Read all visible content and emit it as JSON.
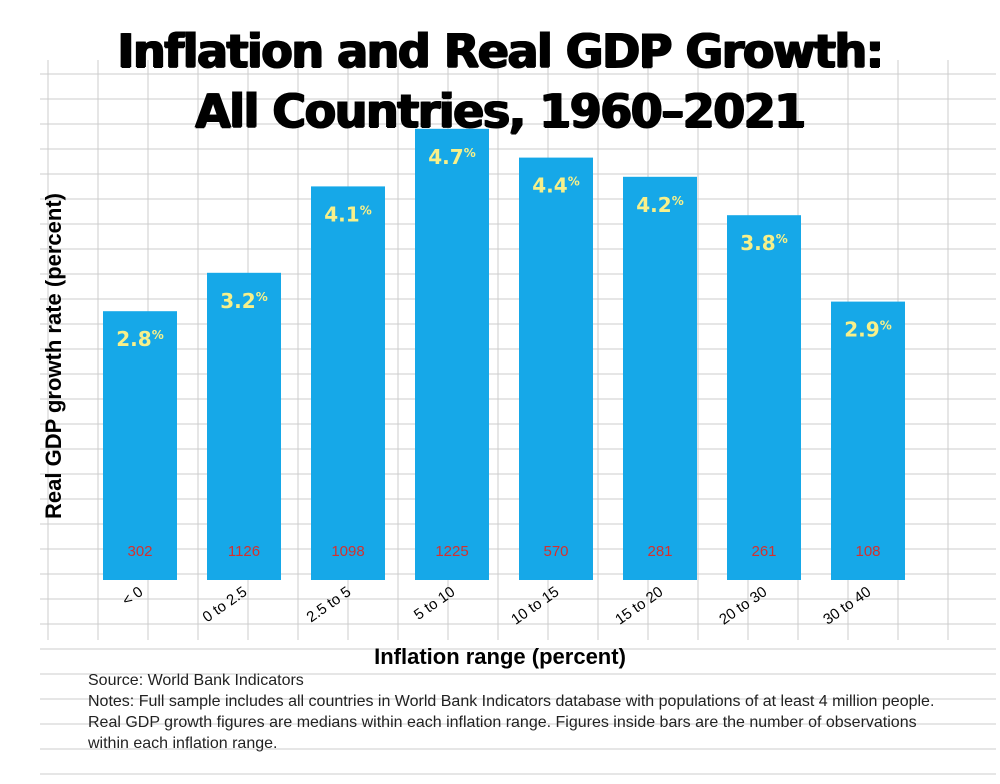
{
  "title_line1": "Inflation and Real GDP Growth:",
  "title_line2": "All Countries, 1960–2021",
  "chart_data": {
    "type": "bar",
    "title": "Inflation and Real GDP Growth: All Countries, 1960–2021",
    "xlabel": "Inflation range (percent)",
    "ylabel": "Real GDP growth rate (percent)",
    "categories": [
      "< 0",
      "0 to 2.5",
      "2.5 to 5",
      "5 to 10",
      "10 to 15",
      "15 to 20",
      "20 to 30",
      "30 to 40"
    ],
    "values": [
      2.8,
      3.2,
      4.1,
      4.7,
      4.4,
      4.2,
      3.8,
      2.9
    ],
    "value_labels": [
      "2.8",
      "3.2",
      "4.1",
      "4.7",
      "4.4",
      "4.2",
      "3.8",
      "2.9"
    ],
    "value_unit": "%",
    "observations": [
      "302",
      "1126",
      "1098",
      "1225",
      "570",
      "281",
      "261",
      "108"
    ],
    "ylim": [
      0,
      5
    ],
    "grid": true,
    "legend": "none",
    "colors": {
      "bar": "#16a8e8",
      "value_label": "#f7f08a",
      "count_label": "#d4312e",
      "grid": "#cccccc"
    }
  },
  "source": "Source: World Bank Indicators",
  "notes": "Notes: Full sample includes all countries in World Bank Indicators database with populations of at least 4 million people. Real GDP growth figures are medians within each inflation range. Figures inside bars are the number of observations within each inflation range."
}
